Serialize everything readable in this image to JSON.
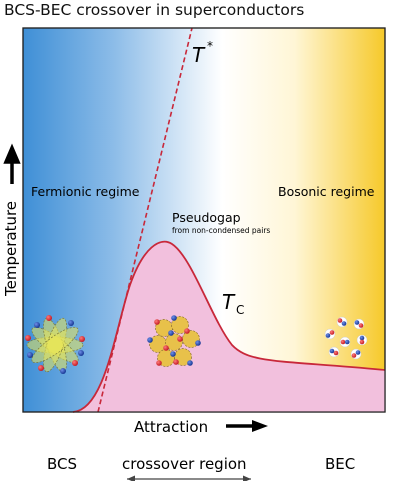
{
  "title": "BCS-BEC crossover in superconductors",
  "labels": {
    "t_star": "T",
    "t_star_sup": "*",
    "tc_main": "T",
    "tc_sub": "C",
    "fermionic": "Fermionic regime",
    "bosonic": "Bosonic regime",
    "pseudogap": "Pseudogap",
    "pseudogap_note": "from non-condensed pairs",
    "y_axis": "Temperature",
    "x_axis": "Attraction",
    "bcs": "BCS",
    "crossover": "crossover region",
    "bec": "BEC"
  },
  "colors": {
    "left_blue": "#3f8fd6",
    "mid_white": "#ffffff",
    "right_yellow": "#f6c92a",
    "dome_fill": "#f2c0dd",
    "dome_line": "#c8283a",
    "tstar_line": "#c8283a",
    "electron_red": "#d1202f",
    "electron_blue": "#1c3fa6",
    "pair_fill": "#e8c14a"
  }
}
